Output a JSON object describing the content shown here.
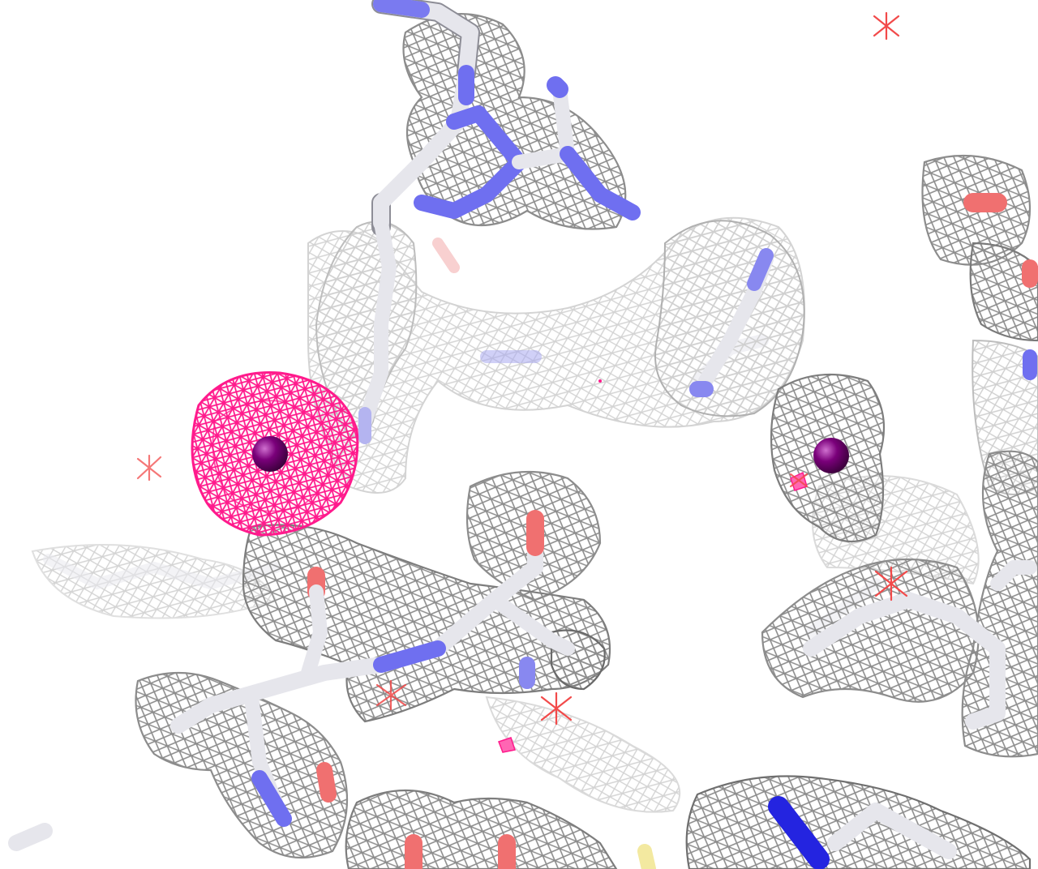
{
  "scene": {
    "background": "#ffffff",
    "colors": {
      "carbon": "#e6e6ec",
      "nitrogen": "#6f6ff0",
      "nitrogen_strong": "#2424e0",
      "oxygen": "#f07070",
      "sulfur": "#f3e9a0",
      "mesh_grey": "#8c8c8c",
      "mesh_pink": "#ff1a8c",
      "ion": "#7a007a",
      "water_marker": "#f24a4a"
    },
    "objects": [
      "stick-model",
      "electron-density-mesh",
      "anomalous-density-mesh",
      "metal-ion",
      "water-marker"
    ]
  }
}
